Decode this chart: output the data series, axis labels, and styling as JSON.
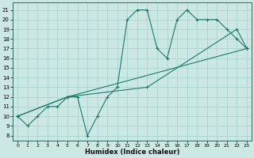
{
  "xlabel": "Humidex (Indice chaleur)",
  "bg_color": "#cce8e4",
  "grid_color": "#aad4d0",
  "line_color": "#1a7a6a",
  "xlim": [
    -0.5,
    23.5
  ],
  "ylim": [
    7.5,
    21.8
  ],
  "xticks": [
    0,
    1,
    2,
    3,
    4,
    5,
    6,
    7,
    8,
    9,
    10,
    11,
    12,
    13,
    14,
    15,
    16,
    17,
    18,
    19,
    20,
    21,
    22,
    23
  ],
  "yticks": [
    8,
    9,
    10,
    11,
    12,
    13,
    14,
    15,
    16,
    17,
    18,
    19,
    20,
    21
  ],
  "curve1_x": [
    0,
    1,
    2,
    3,
    4,
    5,
    6,
    7,
    8,
    9,
    10,
    11,
    12,
    13,
    14,
    15,
    16,
    17,
    18,
    19,
    20,
    21,
    22,
    23
  ],
  "curve1_y": [
    10,
    9,
    10,
    11,
    11,
    12,
    12,
    8,
    10,
    12,
    13,
    20,
    21,
    21,
    17,
    16,
    20,
    21,
    20,
    20,
    20,
    19,
    18,
    17
  ],
  "curve2_x": [
    0,
    5,
    13,
    22,
    23
  ],
  "curve2_y": [
    10,
    12,
    13,
    19,
    17
  ],
  "curve3_x": [
    0,
    5,
    23
  ],
  "curve3_y": [
    10,
    12,
    17
  ]
}
